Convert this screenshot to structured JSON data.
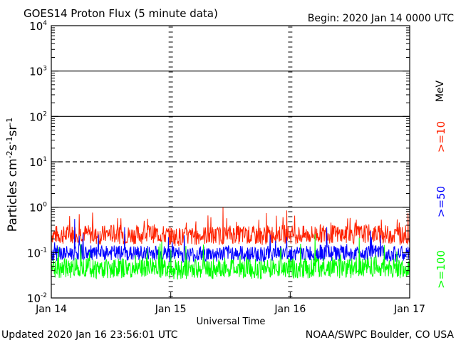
{
  "header": {
    "title": "GOES14 Proton Flux (5 minute data)",
    "begin": "Begin: 2020 Jan 14 0000 UTC"
  },
  "footer": {
    "updated": "Updated 2020 Jan 16 23:56:01 UTC",
    "credit": "NOAA/SWPC Boulder, CO USA"
  },
  "colors": {
    "ge10": "#ff2200",
    "ge50": "#0000ff",
    "ge100": "#00ff00",
    "axis": "#000000",
    "background": "#ffffff"
  },
  "chart_data": {
    "type": "line",
    "title": "GOES14 Proton Flux (5 minute data)",
    "xlabel": "Universal Time",
    "ylabel": "Particles cm-2 s-1 sr-1",
    "yscale": "log",
    "ylim": [
      0.01,
      10000
    ],
    "xlim": [
      0,
      3
    ],
    "x_tick_labels": [
      "Jan 14",
      "Jan 15",
      "Jan 16",
      "Jan 17"
    ],
    "x_tick_positions_days": [
      0,
      1,
      2,
      3
    ],
    "y_ticks": [
      {
        "base": "10",
        "exp": "-2",
        "value": 0.01
      },
      {
        "base": "10",
        "exp": "-1",
        "value": 0.1
      },
      {
        "base": "10",
        "exp": "0",
        "value": 1
      },
      {
        "base": "10",
        "exp": "1",
        "value": 10
      },
      {
        "base": "10",
        "exp": "2",
        "value": 100
      },
      {
        "base": "10",
        "exp": "3",
        "value": 1000
      },
      {
        "base": "10",
        "exp": "4",
        "value": 10000
      }
    ],
    "reference_lines": [
      {
        "value": 1,
        "style": "solid"
      },
      {
        "value": 10,
        "style": "dashed"
      },
      {
        "value": 100,
        "style": "solid"
      },
      {
        "value": 1000,
        "style": "solid"
      }
    ],
    "unit_label": "MeV",
    "series": [
      {
        "name": ">=10",
        "color": "#ff2200",
        "x_days": [
          0.0,
          0.125,
          0.25,
          0.375,
          0.5,
          0.625,
          0.75,
          0.875,
          1.0,
          1.125,
          1.25,
          1.375,
          1.5,
          1.625,
          1.75,
          1.875,
          2.0,
          2.125,
          2.25,
          2.375,
          2.5,
          2.625,
          2.75,
          2.875,
          3.0
        ],
        "values": [
          0.24,
          0.23,
          0.26,
          0.22,
          0.25,
          0.23,
          0.24,
          0.25,
          0.22,
          0.21,
          0.23,
          0.22,
          0.24,
          0.23,
          0.22,
          0.25,
          0.24,
          0.23,
          0.25,
          0.24,
          0.23,
          0.25,
          0.24,
          0.23,
          0.22
        ]
      },
      {
        "name": ">=50",
        "color": "#0000ff",
        "x_days": [
          0.0,
          0.125,
          0.25,
          0.375,
          0.5,
          0.625,
          0.75,
          0.875,
          1.0,
          1.125,
          1.25,
          1.375,
          1.5,
          1.625,
          1.75,
          1.875,
          2.0,
          2.125,
          2.25,
          2.375,
          2.5,
          2.625,
          2.75,
          2.875,
          3.0
        ],
        "values": [
          0.095,
          0.09,
          0.1,
          0.088,
          0.095,
          0.09,
          0.092,
          0.096,
          0.088,
          0.085,
          0.09,
          0.088,
          0.094,
          0.09,
          0.088,
          0.095,
          0.092,
          0.09,
          0.096,
          0.094,
          0.09,
          0.098,
          0.094,
          0.09,
          0.088
        ]
      },
      {
        "name": ">=100",
        "color": "#00ff00",
        "x_days": [
          0.0,
          0.125,
          0.25,
          0.375,
          0.5,
          0.625,
          0.75,
          0.875,
          1.0,
          1.125,
          1.25,
          1.375,
          1.5,
          1.625,
          1.75,
          1.875,
          2.0,
          2.125,
          2.25,
          2.375,
          2.5,
          2.625,
          2.75,
          2.875,
          3.0
        ],
        "values": [
          0.045,
          0.042,
          0.048,
          0.041,
          0.044,
          0.042,
          0.043,
          0.046,
          0.041,
          0.04,
          0.042,
          0.041,
          0.044,
          0.042,
          0.041,
          0.045,
          0.043,
          0.042,
          0.046,
          0.044,
          0.042,
          0.047,
          0.044,
          0.042,
          0.041
        ]
      }
    ]
  }
}
